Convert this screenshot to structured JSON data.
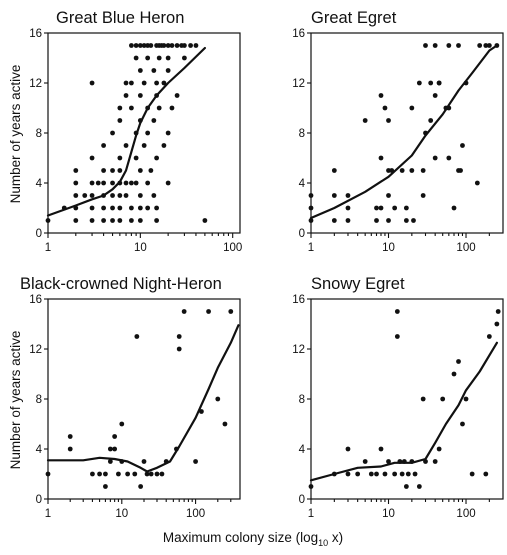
{
  "figure": {
    "ylabel": "Number of years active",
    "xlabel_main": "Maximum colony size (log",
    "xlabel_sub": "10",
    "xlabel_tail": " x)"
  },
  "chart_data": [
    {
      "type": "scatter",
      "title": "Great Blue Heron",
      "xscale": "log10",
      "xlim": [
        1,
        120
      ],
      "ylim": [
        0,
        16
      ],
      "xticks": [
        {
          "value": 1,
          "label": "1"
        },
        {
          "value": 10,
          "label": "10"
        },
        {
          "value": 100,
          "label": "100"
        }
      ],
      "yticks": [
        {
          "value": 0,
          "label": "0"
        },
        {
          "value": 4,
          "label": "4"
        },
        {
          "value": 8,
          "label": "8"
        },
        {
          "value": 12,
          "label": "12"
        },
        {
          "value": 16,
          "label": "16"
        }
      ],
      "points": [
        [
          1,
          1
        ],
        [
          2,
          1
        ],
        [
          3,
          1
        ],
        [
          4,
          1
        ],
        [
          5,
          1
        ],
        [
          6,
          1
        ],
        [
          8,
          1
        ],
        [
          10,
          1
        ],
        [
          15,
          1
        ],
        [
          50,
          1
        ],
        [
          1.5,
          2
        ],
        [
          2,
          2
        ],
        [
          3,
          2
        ],
        [
          4,
          2
        ],
        [
          5,
          2
        ],
        [
          6,
          2
        ],
        [
          8,
          2
        ],
        [
          10,
          2
        ],
        [
          12,
          2
        ],
        [
          15,
          2
        ],
        [
          2,
          3
        ],
        [
          2.5,
          3
        ],
        [
          3,
          3
        ],
        [
          4,
          3
        ],
        [
          5,
          3
        ],
        [
          6,
          3
        ],
        [
          7,
          3
        ],
        [
          10,
          3
        ],
        [
          14,
          3
        ],
        [
          2,
          4
        ],
        [
          3,
          4
        ],
        [
          3.5,
          4
        ],
        [
          4,
          4
        ],
        [
          5,
          4
        ],
        [
          6,
          4
        ],
        [
          7,
          4
        ],
        [
          8,
          4
        ],
        [
          9,
          4
        ],
        [
          12,
          4
        ],
        [
          20,
          4
        ],
        [
          2,
          5
        ],
        [
          4,
          5
        ],
        [
          5,
          5
        ],
        [
          6,
          5
        ],
        [
          10,
          5
        ],
        [
          13,
          5
        ],
        [
          3,
          6
        ],
        [
          6,
          6
        ],
        [
          9,
          6
        ],
        [
          15,
          6
        ],
        [
          4,
          7
        ],
        [
          7,
          7
        ],
        [
          11,
          7
        ],
        [
          18,
          7
        ],
        [
          5,
          8
        ],
        [
          9,
          8
        ],
        [
          12,
          8
        ],
        [
          20,
          8
        ],
        [
          6,
          9
        ],
        [
          10,
          9
        ],
        [
          14,
          9
        ],
        [
          6,
          10
        ],
        [
          8,
          10
        ],
        [
          12,
          10
        ],
        [
          16,
          10
        ],
        [
          22,
          10
        ],
        [
          7,
          11
        ],
        [
          10,
          11
        ],
        [
          15,
          11
        ],
        [
          25,
          11
        ],
        [
          3,
          12
        ],
        [
          7,
          12
        ],
        [
          8,
          12
        ],
        [
          11,
          12
        ],
        [
          15,
          12
        ],
        [
          18,
          12
        ],
        [
          10,
          13
        ],
        [
          14,
          13
        ],
        [
          20,
          13
        ],
        [
          9,
          14
        ],
        [
          12,
          14
        ],
        [
          16,
          14
        ],
        [
          20,
          14
        ],
        [
          30,
          14
        ],
        [
          8,
          15
        ],
        [
          9,
          15
        ],
        [
          10,
          15
        ],
        [
          11,
          15
        ],
        [
          12,
          15
        ],
        [
          13,
          15
        ],
        [
          15,
          15
        ],
        [
          16,
          15
        ],
        [
          17,
          15
        ],
        [
          18,
          15
        ],
        [
          20,
          15
        ],
        [
          22,
          15
        ],
        [
          25,
          15
        ],
        [
          28,
          15
        ],
        [
          30,
          15
        ],
        [
          35,
          15
        ],
        [
          40,
          15
        ]
      ],
      "smooth": [
        [
          1,
          1.4
        ],
        [
          2,
          2.2
        ],
        [
          3,
          2.7
        ],
        [
          4,
          3
        ],
        [
          5,
          3.5
        ],
        [
          6,
          4.1
        ],
        [
          7,
          5
        ],
        [
          8,
          6.5
        ],
        [
          9,
          7.8
        ],
        [
          10,
          8.8
        ],
        [
          12,
          10
        ],
        [
          15,
          11
        ],
        [
          20,
          12
        ],
        [
          30,
          13.2
        ],
        [
          50,
          14.8
        ]
      ]
    },
    {
      "type": "scatter",
      "title": "Great Egret",
      "xscale": "log10",
      "xlim": [
        1,
        300
      ],
      "ylim": [
        0,
        16
      ],
      "xticks": [
        {
          "value": 1,
          "label": "1"
        },
        {
          "value": 10,
          "label": "10"
        },
        {
          "value": 100,
          "label": "100"
        }
      ],
      "yticks": [
        {
          "value": 0,
          "label": "0"
        },
        {
          "value": 4,
          "label": "4"
        },
        {
          "value": 8,
          "label": "8"
        },
        {
          "value": 12,
          "label": "12"
        },
        {
          "value": 16,
          "label": "16"
        }
      ],
      "points": [
        [
          1,
          1
        ],
        [
          2,
          1
        ],
        [
          3,
          1
        ],
        [
          7,
          1
        ],
        [
          10,
          1
        ],
        [
          17,
          1
        ],
        [
          21,
          1
        ],
        [
          1,
          2
        ],
        [
          3,
          2
        ],
        [
          7,
          2
        ],
        [
          8,
          2
        ],
        [
          12,
          2
        ],
        [
          17,
          2
        ],
        [
          70,
          2
        ],
        [
          1,
          3
        ],
        [
          2,
          3
        ],
        [
          3,
          3
        ],
        [
          10,
          3
        ],
        [
          28,
          3
        ],
        [
          2,
          5
        ],
        [
          10,
          5
        ],
        [
          11,
          5
        ],
        [
          15,
          5
        ],
        [
          20,
          5
        ],
        [
          28,
          5
        ],
        [
          80,
          5
        ],
        [
          85,
          5
        ],
        [
          140,
          4
        ],
        [
          8,
          6
        ],
        [
          40,
          6
        ],
        [
          60,
          6
        ],
        [
          90,
          7
        ],
        [
          5,
          9
        ],
        [
          10,
          9
        ],
        [
          30,
          8
        ],
        [
          35,
          9
        ],
        [
          40,
          11
        ],
        [
          45,
          12
        ],
        [
          9,
          10
        ],
        [
          20,
          10
        ],
        [
          55,
          10
        ],
        [
          60,
          10
        ],
        [
          8,
          11
        ],
        [
          25,
          12
        ],
        [
          35,
          12
        ],
        [
          45,
          12
        ],
        [
          100,
          12
        ],
        [
          30,
          15
        ],
        [
          40,
          15
        ],
        [
          60,
          15
        ],
        [
          80,
          15
        ],
        [
          150,
          15
        ],
        [
          180,
          15
        ],
        [
          200,
          15
        ],
        [
          250,
          15
        ]
      ],
      "smooth": [
        [
          1,
          1.2
        ],
        [
          2,
          2
        ],
        [
          5,
          3.3
        ],
        [
          10,
          4.5
        ],
        [
          20,
          6.2
        ],
        [
          30,
          7.8
        ],
        [
          50,
          9.5
        ],
        [
          80,
          11.4
        ],
        [
          120,
          12.8
        ],
        [
          200,
          14.6
        ],
        [
          250,
          15
        ]
      ]
    },
    {
      "type": "scatter",
      "title": "Black-crowned Night-Heron",
      "xscale": "log10",
      "xlim": [
        1,
        400
      ],
      "ylim": [
        0,
        16
      ],
      "xticks": [
        {
          "value": 1,
          "label": "1"
        },
        {
          "value": 10,
          "label": "10"
        },
        {
          "value": 100,
          "label": "100"
        }
      ],
      "yticks": [
        {
          "value": 0,
          "label": "0"
        },
        {
          "value": 4,
          "label": "4"
        },
        {
          "value": 8,
          "label": "8"
        },
        {
          "value": 12,
          "label": "12"
        },
        {
          "value": 16,
          "label": "16"
        }
      ],
      "points": [
        [
          1,
          2
        ],
        [
          2,
          4
        ],
        [
          2,
          5
        ],
        [
          4,
          2
        ],
        [
          5,
          2
        ],
        [
          6,
          2
        ],
        [
          6,
          1
        ],
        [
          7,
          4
        ],
        [
          7,
          3
        ],
        [
          8,
          4
        ],
        [
          8,
          5
        ],
        [
          9,
          2
        ],
        [
          10,
          6
        ],
        [
          10,
          3
        ],
        [
          12,
          2
        ],
        [
          15,
          2
        ],
        [
          16,
          13
        ],
        [
          18,
          1
        ],
        [
          20,
          3
        ],
        [
          22,
          2
        ],
        [
          25,
          2
        ],
        [
          30,
          2
        ],
        [
          35,
          2
        ],
        [
          40,
          3
        ],
        [
          55,
          4
        ],
        [
          60,
          12
        ],
        [
          60,
          13
        ],
        [
          70,
          15
        ],
        [
          100,
          3
        ],
        [
          120,
          7
        ],
        [
          150,
          15
        ],
        [
          200,
          8
        ],
        [
          250,
          6
        ],
        [
          300,
          15
        ]
      ],
      "smooth": [
        [
          1,
          3.1
        ],
        [
          3,
          3.1
        ],
        [
          5,
          3.3
        ],
        [
          8,
          3.2
        ],
        [
          12,
          3
        ],
        [
          18,
          2.5
        ],
        [
          22,
          2.2
        ],
        [
          30,
          2.5
        ],
        [
          45,
          3
        ],
        [
          60,
          4.2
        ],
        [
          100,
          6.5
        ],
        [
          150,
          8.8
        ],
        [
          200,
          10.5
        ],
        [
          300,
          12.5
        ],
        [
          380,
          13.9
        ]
      ]
    },
    {
      "type": "scatter",
      "title": "Snowy Egret",
      "xscale": "log10",
      "xlim": [
        1,
        300
      ],
      "ylim": [
        0,
        16
      ],
      "xticks": [
        {
          "value": 1,
          "label": "1"
        },
        {
          "value": 10,
          "label": "10"
        },
        {
          "value": 100,
          "label": "100"
        }
      ],
      "yticks": [
        {
          "value": 0,
          "label": "0"
        },
        {
          "value": 4,
          "label": "4"
        },
        {
          "value": 8,
          "label": "8"
        },
        {
          "value": 12,
          "label": "12"
        },
        {
          "value": 16,
          "label": "16"
        }
      ],
      "points": [
        [
          1,
          1
        ],
        [
          2,
          2
        ],
        [
          3,
          4
        ],
        [
          3,
          2
        ],
        [
          4,
          2
        ],
        [
          5,
          3
        ],
        [
          6,
          2
        ],
        [
          7,
          2
        ],
        [
          8,
          4
        ],
        [
          9,
          2
        ],
        [
          10,
          3
        ],
        [
          12,
          2
        ],
        [
          13,
          15
        ],
        [
          13,
          13
        ],
        [
          14,
          3
        ],
        [
          15,
          2
        ],
        [
          16,
          3
        ],
        [
          17,
          1
        ],
        [
          18,
          2
        ],
        [
          20,
          3
        ],
        [
          22,
          2
        ],
        [
          25,
          1
        ],
        [
          28,
          8
        ],
        [
          30,
          3
        ],
        [
          40,
          3
        ],
        [
          45,
          4
        ],
        [
          50,
          8
        ],
        [
          70,
          10
        ],
        [
          80,
          11
        ],
        [
          90,
          6
        ],
        [
          100,
          8
        ],
        [
          120,
          2
        ],
        [
          180,
          2
        ],
        [
          250,
          14
        ],
        [
          260,
          15
        ],
        [
          200,
          13
        ]
      ],
      "smooth": [
        [
          1,
          1.5
        ],
        [
          2,
          2
        ],
        [
          4,
          2.5
        ],
        [
          8,
          2.6
        ],
        [
          12,
          2.9
        ],
        [
          20,
          2.9
        ],
        [
          30,
          3.2
        ],
        [
          40,
          4.5
        ],
        [
          55,
          6
        ],
        [
          80,
          7.5
        ],
        [
          100,
          8.7
        ],
        [
          150,
          10.2
        ],
        [
          200,
          11.5
        ],
        [
          250,
          12.5
        ]
      ]
    }
  ]
}
